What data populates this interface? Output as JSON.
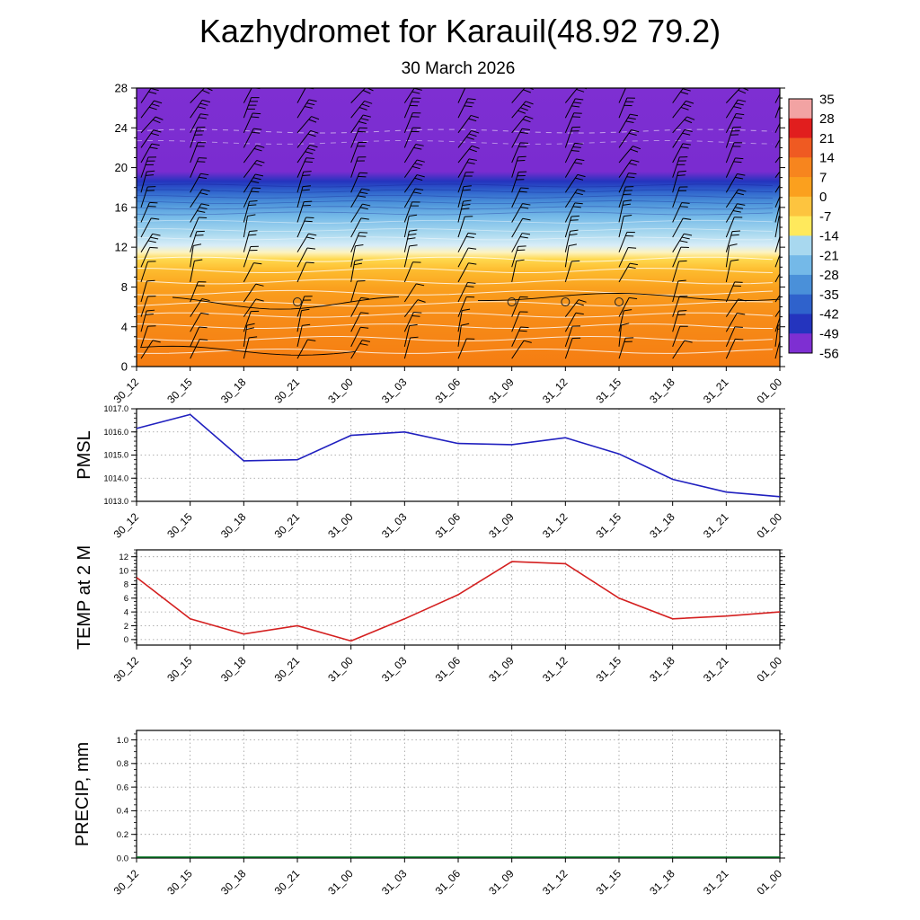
{
  "page": {
    "title": "Kazhydromet for Karauil(48.92 79.2)",
    "subtitle": "30 March 2026",
    "background": "#ffffff"
  },
  "time_axis": {
    "categories": [
      "30_12",
      "30_15",
      "30_18",
      "30_21",
      "31_00",
      "31_03",
      "31_06",
      "31_09",
      "31_12",
      "31_15",
      "31_18",
      "31_21",
      "01_00"
    ]
  },
  "chart_data": [
    {
      "type": "heatmap",
      "name": "temperature-height-cross-section",
      "x_categories": [
        "30_12",
        "30_15",
        "30_18",
        "30_21",
        "31_00",
        "31_03",
        "31_06",
        "31_09",
        "31_12",
        "31_15",
        "31_18",
        "31_21",
        "01_00"
      ],
      "ylim": [
        0,
        28
      ],
      "yticks": [
        "0",
        "4",
        "8",
        "12",
        "16",
        "20",
        "24",
        "28"
      ],
      "colorbar": {
        "labels": [
          "35",
          "28",
          "21",
          "14",
          "7",
          "0",
          "-7",
          "-14",
          "-21",
          "-28",
          "-35",
          "-42",
          "-49",
          "-56"
        ],
        "segment_colors_top_to_bottom": [
          "#f2a3a3",
          "#e11e1e",
          "#ef5a22",
          "#f7851e",
          "#fba01e",
          "#fdc43f",
          "#ffe95c",
          "#a8d8ef",
          "#74b9e8",
          "#4a90d9",
          "#2f62cc",
          "#2434be",
          "#7e2fd2"
        ]
      },
      "fill_gradient_top_to_bottom": [
        {
          "at": 0.0,
          "color": "#7e2fd2"
        },
        {
          "at": 0.3,
          "color": "#7a2cd0"
        },
        {
          "at": 0.335,
          "color": "#2434be"
        },
        {
          "at": 0.37,
          "color": "#2f62cc"
        },
        {
          "at": 0.41,
          "color": "#4a90d9"
        },
        {
          "at": 0.46,
          "color": "#74b9e8"
        },
        {
          "at": 0.52,
          "color": "#a8d8ef"
        },
        {
          "at": 0.565,
          "color": "#d8edf7"
        },
        {
          "at": 0.59,
          "color": "#fdf3c0"
        },
        {
          "at": 0.615,
          "color": "#ffd84d"
        },
        {
          "at": 0.655,
          "color": "#fdbb2e"
        },
        {
          "at": 0.72,
          "color": "#faa01e"
        },
        {
          "at": 0.82,
          "color": "#f78c18"
        },
        {
          "at": 1.0,
          "color": "#f57d12"
        }
      ],
      "wind_barbs": {
        "levels": [
          {
            "y": 26.5,
            "angle": 34,
            "ticks": 2
          },
          {
            "y": 25.0,
            "angle": 30,
            "ticks": 3
          },
          {
            "y": 23.5,
            "angle": 32,
            "ticks": 2
          },
          {
            "y": 22.0,
            "angle": 28,
            "ticks": 2
          },
          {
            "y": 20.5,
            "angle": 30,
            "ticks": 2
          },
          {
            "y": 19.0,
            "angle": 27,
            "ticks": 2
          },
          {
            "y": 17.5,
            "angle": 25,
            "ticks": 2
          },
          {
            "y": 16.0,
            "angle": 24,
            "ticks": 2
          },
          {
            "y": 14.5,
            "angle": 22,
            "ticks": 2
          },
          {
            "y": 13.0,
            "angle": 20,
            "ticks": 1
          },
          {
            "y": 11.5,
            "angle": 22,
            "ticks": 2
          },
          {
            "y": 10.0,
            "angle": 18,
            "ticks": 1
          },
          {
            "y": 8.5,
            "angle": 20,
            "ticks": 1
          },
          {
            "y": 6.5,
            "angle": 24,
            "ticks": 1
          },
          {
            "y": 5.0,
            "angle": 28,
            "ticks": 1
          },
          {
            "y": 3.5,
            "angle": 20,
            "ticks": 1
          },
          {
            "y": 2.0,
            "angle": 16,
            "ticks": 1
          },
          {
            "y": 0.8,
            "angle": 24,
            "ticks": 1
          }
        ],
        "calm_circles": [
          {
            "col": 3,
            "y": 6.5
          },
          {
            "col": 7,
            "y": 6.5
          },
          {
            "col": 8,
            "y": 6.5
          },
          {
            "col": 9,
            "y": 6.5
          }
        ]
      }
    },
    {
      "type": "line",
      "name": "pmsl",
      "ylabel": "PMSL",
      "color": "#2020bf",
      "categories": [
        "30_12",
        "30_15",
        "30_18",
        "30_21",
        "31_00",
        "31_03",
        "31_06",
        "31_09",
        "31_12",
        "31_15",
        "31_18",
        "31_21",
        "01_00"
      ],
      "values": [
        1016.15,
        1016.75,
        1014.75,
        1014.8,
        1015.85,
        1016.0,
        1015.5,
        1015.45,
        1015.75,
        1015.05,
        1013.95,
        1013.4,
        1013.2
      ],
      "ylim": [
        1013.0,
        1017.0
      ],
      "yticks": [
        1013.0,
        1014.0,
        1015.0,
        1016.0,
        1017.0
      ],
      "ytick_labels": [
        "1013.0",
        "1014.0",
        "1015.0",
        "1016.0",
        "1017.0"
      ],
      "minor_step": 0.2,
      "grid": true
    },
    {
      "type": "line",
      "name": "temp-2m",
      "ylabel": "TEMP at 2 M",
      "color": "#d42020",
      "categories": [
        "30_12",
        "30_15",
        "30_18",
        "30_21",
        "31_00",
        "31_03",
        "31_06",
        "31_09",
        "31_12",
        "31_15",
        "31_18",
        "31_21",
        "01_00"
      ],
      "values": [
        9.0,
        3.0,
        0.8,
        2.0,
        -0.2,
        3.0,
        6.5,
        11.3,
        11.0,
        6.0,
        3.0,
        3.4,
        4.0
      ],
      "ylim": [
        -0.8,
        13
      ],
      "yticks": [
        0,
        2,
        4,
        6,
        8,
        10,
        12
      ],
      "ytick_labels": [
        "0",
        "2",
        "4",
        "6",
        "8",
        "10",
        "12"
      ],
      "minor_step": 0.5,
      "grid": true
    },
    {
      "type": "line",
      "name": "precip",
      "ylabel": "PRECIP, mm",
      "color": "#00701f",
      "categories": [
        "30_12",
        "30_15",
        "30_18",
        "30_21",
        "31_00",
        "31_03",
        "31_06",
        "31_09",
        "31_12",
        "31_15",
        "31_18",
        "31_21",
        "01_00"
      ],
      "values": [
        0,
        0,
        0,
        0,
        0,
        0,
        0,
        0,
        0,
        0,
        0,
        0,
        0
      ],
      "ylim": [
        0,
        1.08
      ],
      "yticks": [
        0,
        0.2,
        0.4,
        0.6,
        0.8,
        1.0
      ],
      "ytick_labels": [
        "0.0",
        "0.2",
        "0.4",
        "0.6",
        "0.8",
        "1.0"
      ],
      "minor_step": 0.05,
      "grid": true
    }
  ]
}
